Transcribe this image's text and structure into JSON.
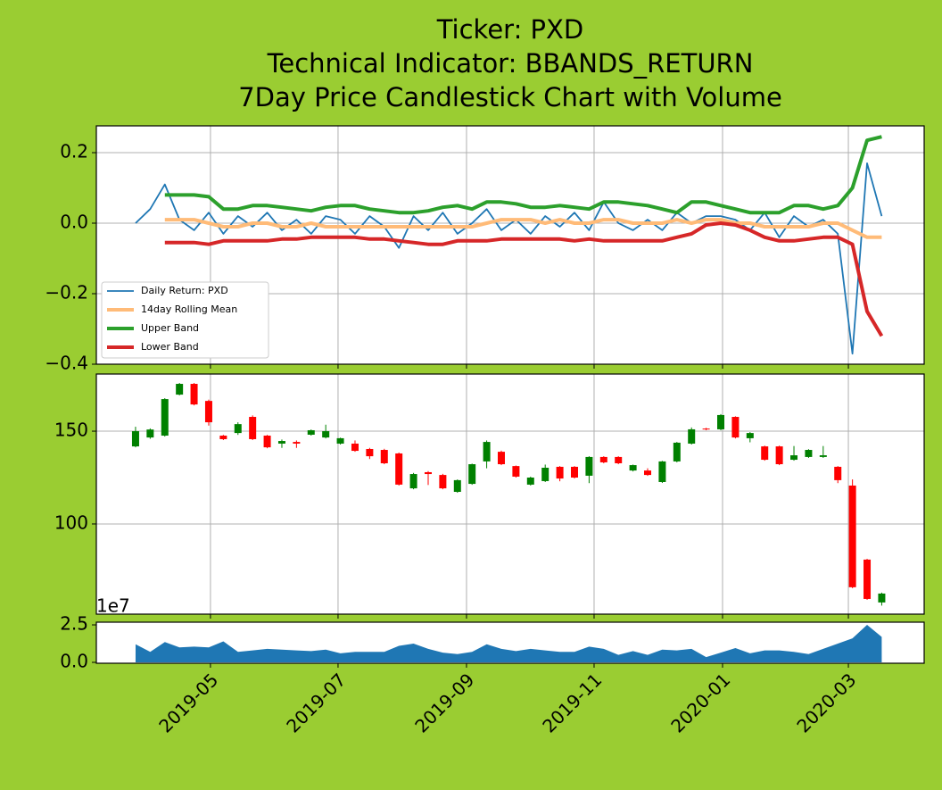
{
  "title": [
    "Ticker: PXD",
    "Technical Indicator: BBANDS_RETURN",
    "7Day Price Candlestick Chart with Volume"
  ],
  "chart_data": [
    {
      "type": "line",
      "grid": true,
      "legend": "lower left",
      "ylim": [
        -0.4,
        0.276
      ],
      "yticks": [
        {
          "value": -0.4,
          "label": "−0.4"
        },
        {
          "value": -0.2,
          "label": "−0.2"
        },
        {
          "value": 0.0,
          "label": "0.0"
        },
        {
          "value": 0.2,
          "label": "0.2"
        }
      ],
      "series": [
        {
          "name": "Daily Return: PXD",
          "color": "#1f77b4",
          "linewidth": 1.8,
          "values": [
            0.0,
            0.04,
            0.11,
            0.01,
            -0.02,
            0.03,
            -0.03,
            0.02,
            -0.01,
            0.03,
            -0.02,
            0.01,
            -0.03,
            0.02,
            0.01,
            -0.03,
            0.02,
            -0.01,
            -0.07,
            0.02,
            -0.02,
            0.03,
            -0.03,
            0.0,
            0.04,
            -0.02,
            0.01,
            -0.03,
            0.02,
            -0.01,
            0.03,
            -0.02,
            0.06,
            0.0,
            -0.02,
            0.01,
            -0.02,
            0.03,
            0.0,
            0.02,
            0.02,
            0.01,
            -0.02,
            0.03,
            -0.04,
            0.02,
            -0.01,
            0.01,
            -0.03,
            -0.37,
            0.17,
            0.02
          ]
        },
        {
          "name": "14day Rolling Mean",
          "color": "#ffbb78",
          "linewidth": 4,
          "values": [
            null,
            null,
            0.01,
            0.01,
            0.01,
            0.0,
            -0.01,
            -0.01,
            0.0,
            0.0,
            -0.01,
            -0.01,
            0.0,
            -0.01,
            -0.01,
            -0.01,
            -0.01,
            -0.01,
            -0.01,
            -0.01,
            -0.01,
            -0.01,
            -0.01,
            -0.01,
            0.0,
            0.01,
            0.01,
            0.01,
            0.0,
            0.01,
            0.0,
            0.0,
            0.01,
            0.01,
            0.0,
            0.0,
            0.0,
            0.01,
            0.0,
            0.01,
            0.01,
            0.0,
            0.0,
            -0.01,
            -0.01,
            -0.01,
            -0.01,
            0.0,
            0.0,
            -0.02,
            -0.04,
            -0.04
          ]
        },
        {
          "name": "Upper Band",
          "color": "#2ca02c",
          "linewidth": 4,
          "values": [
            null,
            null,
            0.08,
            0.08,
            0.08,
            0.075,
            0.04,
            0.04,
            0.05,
            0.05,
            0.045,
            0.04,
            0.035,
            0.045,
            0.05,
            0.05,
            0.04,
            0.035,
            0.03,
            0.03,
            0.035,
            0.045,
            0.05,
            0.04,
            0.06,
            0.06,
            0.055,
            0.045,
            0.045,
            0.05,
            0.045,
            0.04,
            0.06,
            0.06,
            0.055,
            0.05,
            0.04,
            0.03,
            0.06,
            0.06,
            0.05,
            0.04,
            0.03,
            0.03,
            0.03,
            0.05,
            0.05,
            0.04,
            0.05,
            0.1,
            0.235,
            0.245
          ]
        },
        {
          "name": "Lower Band",
          "color": "#d62728",
          "linewidth": 4,
          "values": [
            null,
            null,
            -0.055,
            -0.055,
            -0.055,
            -0.06,
            -0.05,
            -0.05,
            -0.05,
            -0.05,
            -0.045,
            -0.045,
            -0.04,
            -0.04,
            -0.04,
            -0.04,
            -0.045,
            -0.045,
            -0.05,
            -0.055,
            -0.06,
            -0.06,
            -0.05,
            -0.05,
            -0.05,
            -0.045,
            -0.045,
            -0.045,
            -0.045,
            -0.045,
            -0.05,
            -0.045,
            -0.05,
            -0.05,
            -0.05,
            -0.05,
            -0.05,
            -0.04,
            -0.03,
            -0.005,
            0.0,
            -0.005,
            -0.02,
            -0.04,
            -0.05,
            -0.05,
            -0.045,
            -0.04,
            -0.04,
            -0.06,
            -0.25,
            -0.32
          ]
        }
      ]
    },
    {
      "type": "candlestick",
      "grid": true,
      "up_color": "green",
      "down_color": "red",
      "ylim": [
        51.4,
        180.8
      ],
      "yticks": [
        100,
        150
      ],
      "open": [
        141.8,
        146.6,
        147.6,
        169.7,
        175.5,
        166.3,
        147.6,
        149,
        157.7,
        147.6,
        143.3,
        144.2,
        148.1,
        146.6,
        143.3,
        143.3,
        140.4,
        139.9,
        138,
        119.2,
        127.9,
        126.4,
        117.3,
        121.6,
        133.7,
        138.9,
        131.2,
        121.2,
        123.1,
        130.8,
        130.8,
        126,
        136.1,
        136.1,
        128.8,
        128.8,
        122.6,
        133.7,
        143.3,
        151.4,
        151,
        157.7,
        146.2,
        141.8,
        141.8,
        134.6,
        136.1,
        136.1,
        130.8,
        120.7,
        80.8,
        57.7
      ],
      "high": [
        152.4,
        151.5,
        167.8,
        176,
        176,
        167,
        148,
        154.8,
        158.5,
        148,
        145.5,
        145,
        150.9,
        153.5,
        146.5,
        145,
        141,
        140.5,
        138.5,
        127.5,
        128.5,
        127,
        124,
        132.5,
        145,
        139.5,
        131.5,
        125.5,
        132,
        131.2,
        131.2,
        136.5,
        136.5,
        136.5,
        132,
        130,
        134,
        144.2,
        152,
        151.8,
        159.2,
        158,
        149.5,
        142.2,
        142.2,
        142,
        140.3,
        142,
        131.2,
        124,
        81.2,
        63
      ],
      "low": [
        141.3,
        145.9,
        147.1,
        169.3,
        163.9,
        153,
        145.2,
        148,
        145.2,
        140.8,
        141,
        141,
        147.6,
        146.1,
        142.8,
        138.9,
        135,
        132.2,
        120.7,
        118.7,
        121,
        118.7,
        116.8,
        121.1,
        130,
        131.7,
        125,
        120.7,
        122.6,
        123,
        124.5,
        122,
        132.7,
        132.2,
        128.3,
        125.9,
        122.1,
        133.2,
        142.8,
        150.5,
        150.5,
        146.1,
        144,
        134.1,
        131.7,
        134.1,
        135.6,
        135.6,
        122,
        65.4,
        59.1,
        56
      ],
      "close": [
        150,
        150.9,
        167.3,
        175.5,
        164.4,
        154.8,
        145.7,
        153.8,
        145.7,
        141.3,
        144.7,
        143.3,
        150.5,
        150,
        146.2,
        139.4,
        136.5,
        132.7,
        121.2,
        126.9,
        126.9,
        119.2,
        123.6,
        132.2,
        144.2,
        132.2,
        125.5,
        125,
        130.3,
        124.5,
        125,
        136.1,
        133.2,
        132.7,
        131.7,
        126.4,
        133.7,
        143.8,
        151,
        151,
        158.7,
        146.6,
        149,
        134.6,
        132.2,
        137,
        139.9,
        137,
        123.6,
        65.9,
        59.6,
        62.5
      ]
    },
    {
      "type": "area",
      "grid": false,
      "color": "#1f77b4",
      "y_offset_label": "1e7",
      "ylim": [
        -0.06,
        2.68
      ],
      "yticks": [
        {
          "value": 0.0,
          "label": "0.0"
        },
        {
          "value": 2.5,
          "label": "2.5"
        }
      ],
      "xlim": [
        -2.68,
        53.9
      ],
      "xticks": [
        {
          "value": 5.12,
          "label": "2019-05"
        },
        {
          "value": 13.84,
          "label": "2019-07"
        },
        {
          "value": 22.62,
          "label": "2019-09"
        },
        {
          "value": 31.34,
          "label": "2019-11"
        },
        {
          "value": 40.12,
          "label": "2020-01"
        },
        {
          "value": 48.72,
          "label": "2020-03"
        }
      ],
      "values": [
        1.2,
        0.7,
        1.35,
        1.0,
        1.05,
        1.0,
        1.4,
        0.7,
        0.8,
        0.9,
        0.85,
        0.8,
        0.75,
        0.85,
        0.6,
        0.7,
        0.7,
        0.7,
        1.1,
        1.25,
        0.9,
        0.65,
        0.55,
        0.7,
        1.2,
        0.9,
        0.75,
        0.9,
        0.8,
        0.7,
        0.7,
        1.05,
        0.9,
        0.5,
        0.75,
        0.5,
        0.85,
        0.8,
        0.9,
        0.35,
        0.65,
        0.95,
        0.6,
        0.8,
        0.8,
        0.7,
        0.55,
        0.9,
        1.25,
        1.6,
        2.5,
        1.7
      ]
    }
  ]
}
